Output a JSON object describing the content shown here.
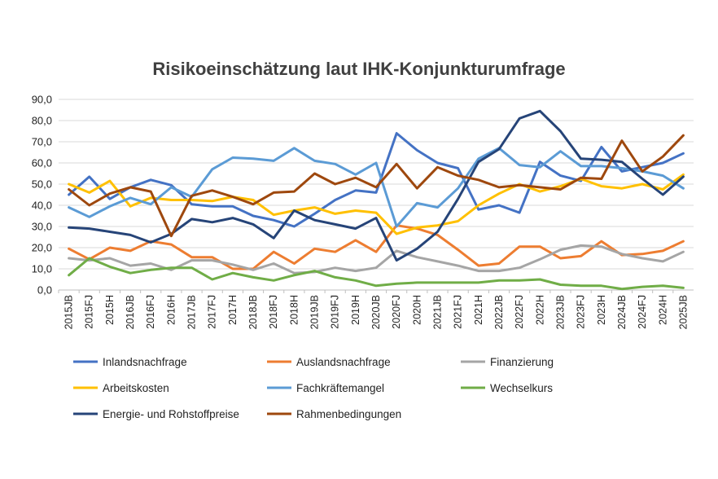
{
  "chart_data": {
    "type": "line",
    "title": "Risikoeinschätzung laut IHK-Konjunkturumfrage",
    "xlabel": "",
    "ylabel": "",
    "ylim": [
      0,
      90
    ],
    "yticks": [
      "0,0",
      "10,0",
      "20,0",
      "30,0",
      "40,0",
      "50,0",
      "60,0",
      "70,0",
      "80,0",
      "90,0"
    ],
    "grid": true,
    "legend_position": "bottom",
    "categories": [
      "2015JB",
      "2015FJ",
      "2015H",
      "2016JB",
      "2016FJ",
      "2016H",
      "2017JB",
      "2017FJ",
      "2017H",
      "2018JB",
      "2018FJ",
      "2018H",
      "2019JB",
      "2019FJ",
      "2019H",
      "2020JB",
      "2020FJ",
      "2020H",
      "2021JB",
      "2021FJ",
      "2021H",
      "2022JB",
      "2022FJ",
      "2022H",
      "2023JB",
      "2023FJ",
      "2023H",
      "2024JB",
      "2024FJ",
      "2024H",
      "2025JB"
    ],
    "series": [
      {
        "name": "Inlandsnachfrage",
        "color": "#4472C4",
        "values": [
          45,
          53.5,
          43,
          48.5,
          52,
          49.5,
          40.5,
          39.5,
          39.5,
          35,
          33,
          30,
          36,
          42.5,
          47,
          46,
          74,
          66,
          60,
          57.5,
          38,
          40,
          36.5,
          60.5,
          54,
          51.5,
          67.5,
          56,
          58,
          60,
          64.5
        ]
      },
      {
        "name": "Auslandsnachfrage",
        "color": "#ED7D31",
        "values": [
          19.5,
          14.5,
          20,
          18.5,
          23,
          21.5,
          15.5,
          15.5,
          10,
          10,
          18,
          12.5,
          19.5,
          18,
          23.5,
          18,
          30.5,
          29,
          26,
          19,
          11.5,
          12.5,
          20.5,
          20.5,
          15,
          16,
          23,
          16.5,
          17,
          18.5,
          23
        ]
      },
      {
        "name": "Finanzierung",
        "color": "#A5A5A5",
        "values": [
          15,
          14,
          15,
          11.5,
          12.5,
          9.5,
          14,
          14,
          12,
          9.5,
          12.5,
          8,
          8.5,
          10.5,
          9,
          10.5,
          18.5,
          15.5,
          13.5,
          11.5,
          9,
          9,
          10.5,
          14.5,
          19,
          21,
          20.5,
          17,
          15,
          13.5,
          18
        ]
      },
      {
        "name": "Arbeitskosten",
        "color": "#FFC000",
        "values": [
          50,
          46,
          51.5,
          39.5,
          43.5,
          42.5,
          42.5,
          42,
          44,
          42.5,
          35.5,
          37.5,
          39,
          36,
          37.5,
          36.5,
          26.5,
          29.5,
          30.5,
          32.5,
          40,
          45.5,
          50,
          46.5,
          49,
          52.5,
          49,
          48,
          50,
          47.5,
          54.5
        ]
      },
      {
        "name": "Fachkräftemangel",
        "color": "#5B9BD5",
        "values": [
          39,
          34.5,
          39.5,
          43.5,
          40.5,
          48.5,
          44,
          57,
          62.5,
          62,
          61,
          67,
          61,
          59.5,
          54.5,
          60,
          30,
          41,
          39,
          48,
          62,
          67,
          59,
          58,
          65.5,
          58.5,
          58.5,
          57.5,
          56,
          54,
          48
        ]
      },
      {
        "name": "Wechselkurs",
        "color": "#70AD47",
        "values": [
          7,
          15,
          11,
          8,
          9.5,
          10.5,
          10.5,
          5,
          8,
          6,
          4.5,
          7,
          9,
          6,
          4.5,
          2,
          3,
          3.5,
          3.5,
          3.5,
          3.5,
          4.5,
          4.5,
          5,
          2.5,
          2,
          2,
          0.5,
          1.5,
          2,
          1
        ]
      },
      {
        "name": "Energie- und Rohstoffpreise",
        "color": "#264478",
        "values": [
          29.5,
          29,
          27.5,
          26,
          22.5,
          26.5,
          33.5,
          32,
          34,
          31,
          24.5,
          37.5,
          33,
          31,
          29,
          34,
          14,
          19.5,
          27.5,
          43,
          60.5,
          66.5,
          81,
          84.5,
          75,
          62,
          61.5,
          60.5,
          52.5,
          45,
          53.5
        ]
      },
      {
        "name": "Rahmenbedingungen",
        "color": "#9E480E",
        "values": [
          47.5,
          40,
          45.5,
          48.5,
          46.5,
          25.5,
          44.5,
          47,
          44,
          40.5,
          46,
          46.5,
          55,
          50,
          53,
          48.5,
          59.5,
          48,
          58,
          54,
          52,
          48.5,
          49.5,
          48.5,
          47.5,
          53,
          52.5,
          70.5,
          56,
          63,
          73
        ]
      }
    ]
  }
}
